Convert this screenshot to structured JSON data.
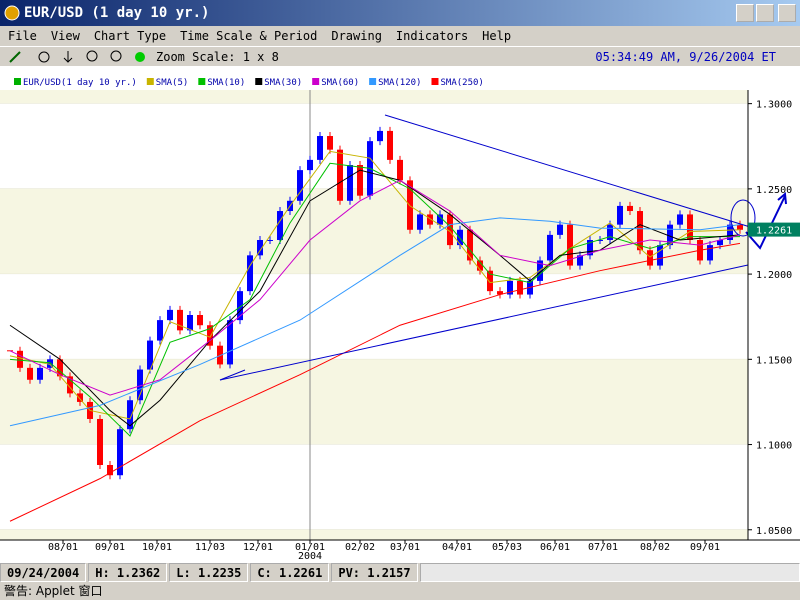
{
  "window": {
    "title": "EUR/USD (1 day  10 yr.)"
  },
  "menu": [
    "File",
    "View",
    "Chart Type",
    "Time Scale & Period",
    "Drawing",
    "Indicators",
    "Help"
  ],
  "toolbar": {
    "zoom": "Zoom Scale: 1 x 8",
    "time": "05:34:49 AM, 9/26/2004 ET"
  },
  "chart_data": {
    "type": "candlestick",
    "xlim": [
      0,
      73.8
    ],
    "xticks": [
      {
        "value": 5.3,
        "label": "08/01"
      },
      {
        "value": 10,
        "label": "09/01"
      },
      {
        "value": 14.7,
        "label": "10/01"
      },
      {
        "value": 20,
        "label": "11/03"
      },
      {
        "value": 24.8,
        "label": "12/01"
      },
      {
        "value": 30,
        "label": "01/01"
      },
      {
        "value": 35,
        "label": "02/02"
      },
      {
        "value": 39.5,
        "label": "03/01"
      },
      {
        "value": 44.7,
        "label": "04/01"
      },
      {
        "value": 49.7,
        "label": "05/03"
      },
      {
        "value": 54.5,
        "label": "06/01"
      },
      {
        "value": 59.3,
        "label": "07/01"
      },
      {
        "value": 64.5,
        "label": "08/02"
      },
      {
        "value": 69.5,
        "label": "09/01"
      }
    ],
    "year_label": "2004",
    "ylim": [
      1.044,
      1.308
    ],
    "yticks": [
      {
        "value": 1.3,
        "label": "1.3000"
      },
      {
        "value": 1.25,
        "label": "1.2500"
      },
      {
        "value": 1.2,
        "label": "1.2000"
      },
      {
        "value": 1.15,
        "label": "1.1500"
      },
      {
        "value": 1.1,
        "label": "1.1000"
      },
      {
        "value": 1.05,
        "label": "1.0500"
      }
    ],
    "up_color": "#0000ff",
    "down_color": "#ff0000",
    "last_price": 1.2261,
    "series": [
      {
        "name": "EUR/USD(1 day  10 yr.)",
        "color": "#00b000",
        "kind": "candle",
        "x": [
          0,
          1,
          2,
          3,
          4,
          5,
          6,
          7,
          8,
          9,
          10,
          11,
          12,
          13,
          14,
          15,
          16,
          17,
          18,
          19,
          20,
          21,
          22,
          23,
          24,
          25,
          26,
          27,
          28,
          29,
          30,
          31,
          32,
          33,
          34,
          35,
          36,
          37,
          38,
          39,
          40,
          41,
          42,
          43,
          44,
          45,
          46,
          47,
          48,
          49,
          50,
          51,
          52,
          53,
          54,
          55,
          56,
          57,
          58,
          59,
          60,
          61,
          62,
          63,
          64,
          65,
          66,
          67,
          68,
          69,
          70,
          71,
          72,
          73
        ],
        "values": [
          1.155,
          1.145,
          1.138,
          1.145,
          1.15,
          1.14,
          1.13,
          1.125,
          1.115,
          1.088,
          1.082,
          1.109,
          1.126,
          1.144,
          1.161,
          1.173,
          1.179,
          1.167,
          1.176,
          1.17,
          1.158,
          1.147,
          1.173,
          1.19,
          1.211,
          1.22,
          1.22,
          1.237,
          1.243,
          1.261,
          1.267,
          1.281,
          1.273,
          1.243,
          1.264,
          1.246,
          1.278,
          1.284,
          1.267,
          1.255,
          1.226,
          1.235,
          1.229,
          1.235,
          1.217,
          1.226,
          1.208,
          1.202,
          1.19,
          1.188,
          1.196,
          1.188,
          1.196,
          1.208,
          1.223,
          1.229,
          1.205,
          1.211,
          1.22,
          1.22,
          1.229,
          1.24,
          1.237,
          1.214,
          1.205,
          1.217,
          1.229,
          1.235,
          1.22,
          1.208,
          1.217,
          1.22,
          1.229,
          1.226
        ]
      },
      {
        "name": "SMA(5)",
        "color": "#c8b400",
        "kind": "line",
        "x": [
          0,
          4,
          8,
          12,
          16,
          20,
          24,
          28,
          32,
          36,
          40,
          44,
          48,
          52,
          56,
          60,
          64,
          68,
          73
        ],
        "values": [
          1.152,
          1.147,
          1.12,
          1.115,
          1.172,
          1.163,
          1.205,
          1.24,
          1.272,
          1.268,
          1.24,
          1.225,
          1.195,
          1.198,
          1.215,
          1.23,
          1.21,
          1.225,
          1.226
        ]
      },
      {
        "name": "SMA(10)",
        "color": "#00c000",
        "kind": "line",
        "x": [
          0,
          4,
          8,
          12,
          16,
          20,
          24,
          28,
          32,
          36,
          40,
          44,
          48,
          52,
          56,
          60,
          64,
          68,
          73
        ],
        "values": [
          1.15,
          1.148,
          1.128,
          1.105,
          1.16,
          1.168,
          1.185,
          1.23,
          1.265,
          1.262,
          1.25,
          1.228,
          1.2,
          1.195,
          1.215,
          1.222,
          1.215,
          1.222,
          1.222
        ]
      },
      {
        "name": "SMA(30)",
        "color": "#000000",
        "kind": "line",
        "x": [
          0,
          5,
          10,
          12,
          15,
          20,
          25,
          30,
          35,
          39,
          44,
          49,
          52,
          55,
          59,
          63,
          67,
          73
        ],
        "values": [
          1.17,
          1.15,
          1.12,
          1.111,
          1.126,
          1.161,
          1.19,
          1.243,
          1.261,
          1.255,
          1.235,
          1.211,
          1.196,
          1.211,
          1.214,
          1.229,
          1.22,
          1.223
        ]
      },
      {
        "name": "SMA(60)",
        "color": "#cc00cc",
        "kind": "line",
        "x": [
          0,
          5,
          10,
          15,
          20,
          25,
          30,
          35,
          39,
          44,
          49,
          54,
          59,
          64,
          69,
          73
        ],
        "values": [
          1.155,
          1.141,
          1.129,
          1.138,
          1.161,
          1.185,
          1.22,
          1.243,
          1.255,
          1.237,
          1.211,
          1.205,
          1.214,
          1.22,
          1.217,
          1.223
        ]
      },
      {
        "name": "SMA(120)",
        "color": "#3399ff",
        "kind": "line",
        "x": [
          0,
          9,
          19,
          29,
          39,
          44,
          49,
          54,
          59,
          69,
          73
        ],
        "values": [
          1.111,
          1.123,
          1.147,
          1.173,
          1.211,
          1.229,
          1.233,
          1.231,
          1.227,
          1.226,
          1.229
        ]
      },
      {
        "name": "SMA(250)",
        "color": "#ff0000",
        "kind": "line",
        "x": [
          0,
          9,
          19,
          29,
          39,
          49,
          59,
          69,
          73
        ],
        "values": [
          1.055,
          1.08,
          1.114,
          1.141,
          1.17,
          1.188,
          1.202,
          1.214,
          1.218
        ]
      }
    ]
  },
  "status": {
    "date": "09/24/2004",
    "high": "H: 1.2362",
    "low": "L: 1.2235",
    "close": "C: 1.2261",
    "pv": "PV: 1.2157"
  },
  "warning": "警告: Applet 窗口"
}
